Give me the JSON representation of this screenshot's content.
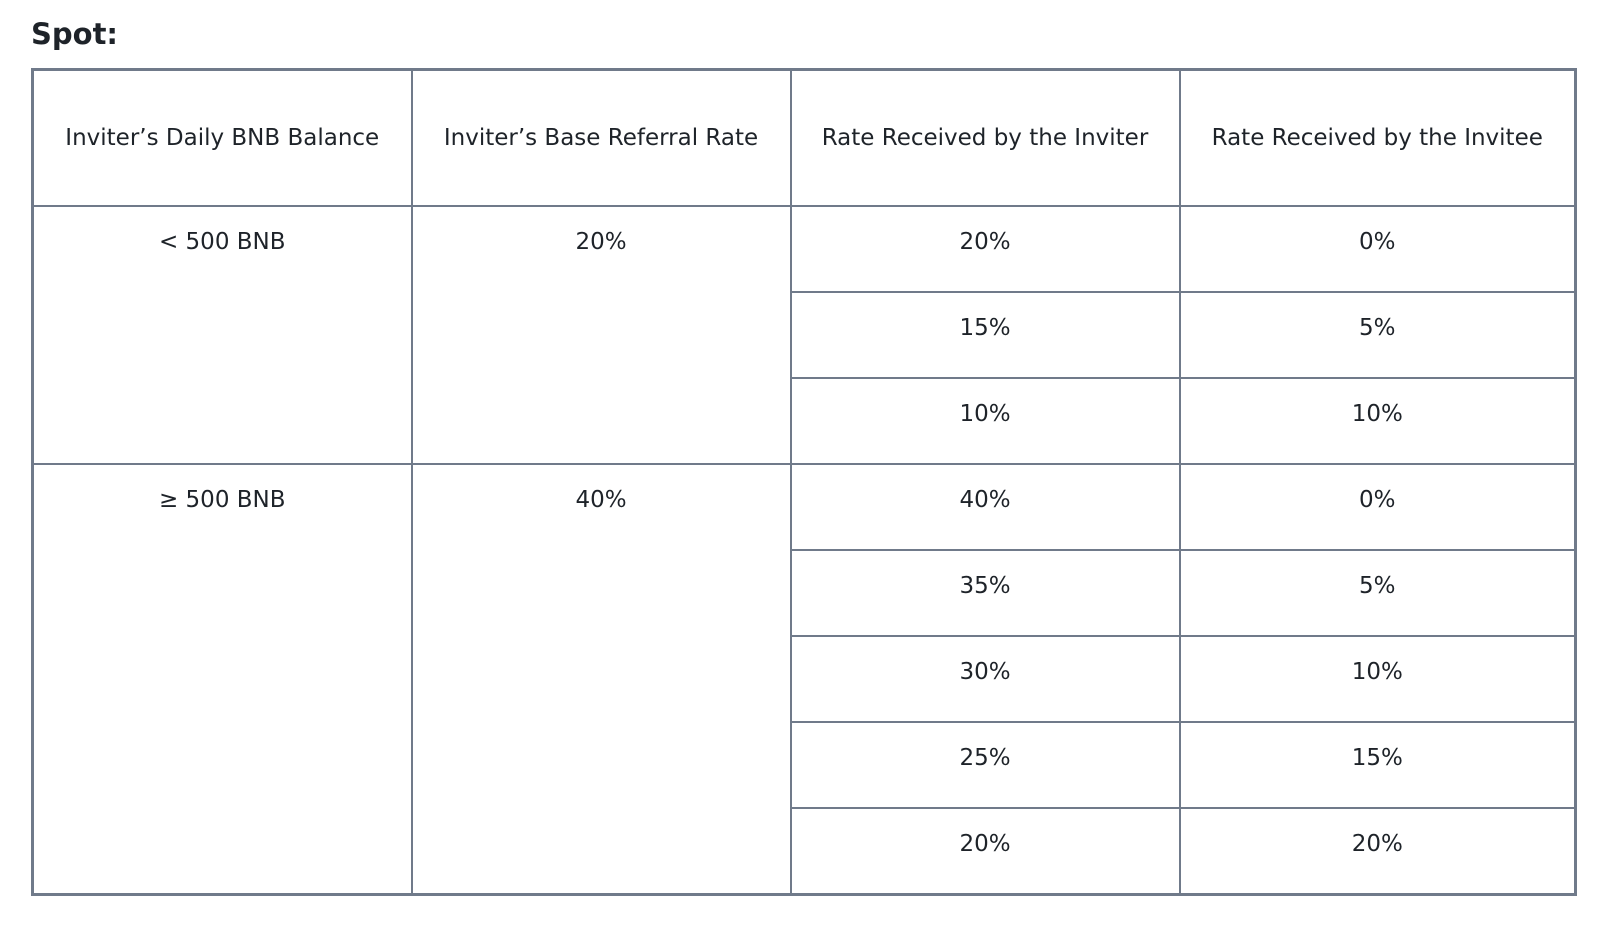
{
  "section_title": "Spot:",
  "table": {
    "headers": [
      "Inviter’s Daily BNB Balance",
      "Inviter’s Base Referral Rate",
      "Rate Received by the Inviter",
      "Rate Received by the Invitee"
    ],
    "groups": [
      {
        "balance": "< 500 BNB",
        "base_rate": "20%",
        "rows": [
          {
            "inviter": "20%",
            "invitee": "0%"
          },
          {
            "inviter": "15%",
            "invitee": "5%"
          },
          {
            "inviter": "10%",
            "invitee": "10%"
          }
        ]
      },
      {
        "balance": "≥ 500 BNB",
        "base_rate": "40%",
        "rows": [
          {
            "inviter": "40%",
            "invitee": "0%"
          },
          {
            "inviter": "35%",
            "invitee": "5%"
          },
          {
            "inviter": "30%",
            "invitee": "10%"
          },
          {
            "inviter": "25%",
            "invitee": "15%"
          },
          {
            "inviter": "20%",
            "invitee": "20%"
          }
        ]
      }
    ]
  }
}
